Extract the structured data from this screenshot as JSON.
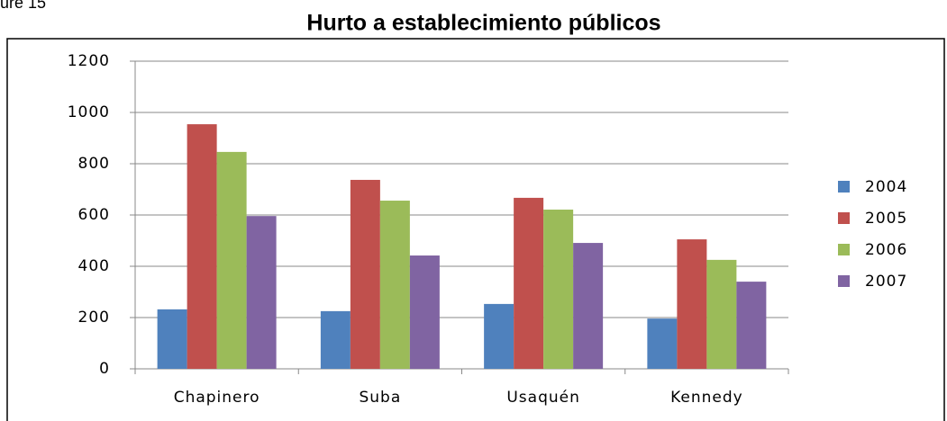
{
  "figure_label": "ure 15",
  "chart_data": {
    "type": "bar",
    "title": "Hurto a establecimiento públicos",
    "categories": [
      "Chapinero",
      "Suba",
      "Usaquén",
      "Kennedy"
    ],
    "series": [
      {
        "name": "2004",
        "color": "#4f81bd",
        "values": [
          232,
          225,
          253,
          196
        ]
      },
      {
        "name": "2005",
        "color": "#c0504d",
        "values": [
          954,
          737,
          667,
          505
        ]
      },
      {
        "name": "2006",
        "color": "#9bbb59",
        "values": [
          846,
          656,
          621,
          425
        ]
      },
      {
        "name": "2007",
        "color": "#8064a2",
        "values": [
          596,
          442,
          491,
          340
        ]
      }
    ],
    "ylim": [
      0,
      1200
    ],
    "yticks": [
      0,
      200,
      400,
      600,
      800,
      1000,
      1200
    ],
    "grid": true,
    "legend": "right"
  }
}
